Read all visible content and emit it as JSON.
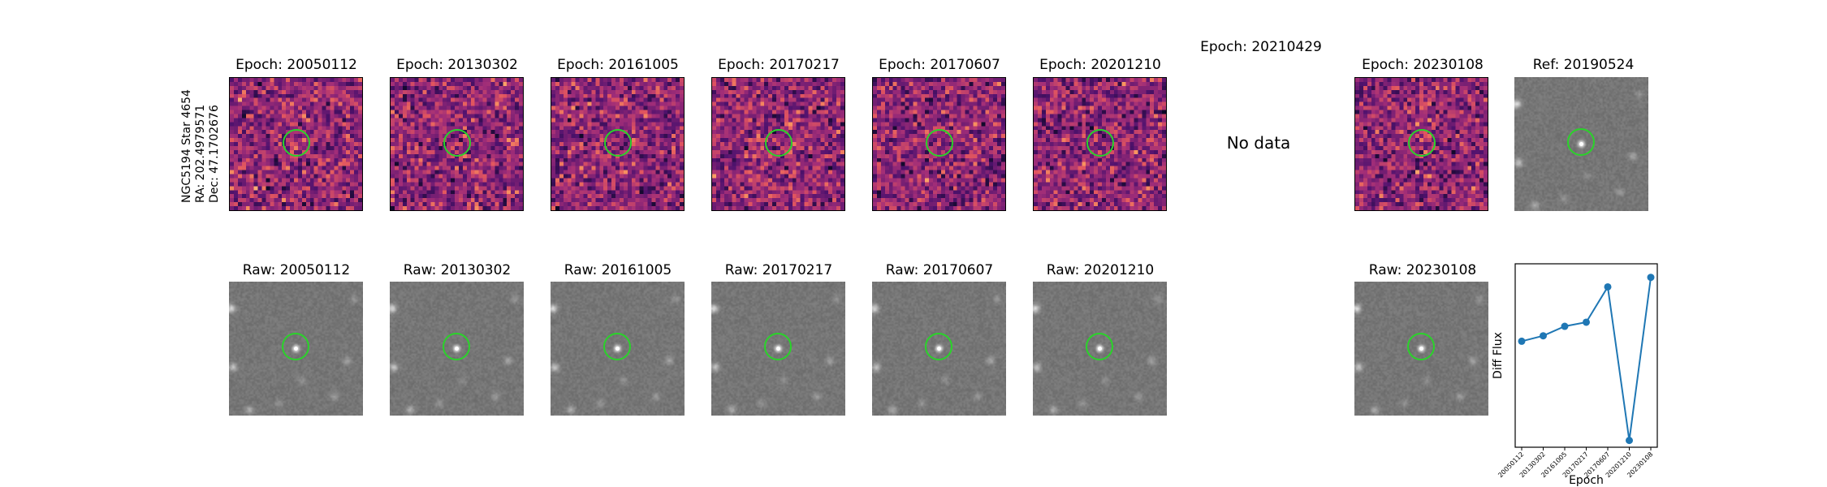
{
  "star_label": {
    "line1": "NGC5194 Star 4654",
    "line2": "RA: 202.4979571",
    "line3": "Dec: 47.1702676"
  },
  "top_row": [
    {
      "title": "Epoch: 20050112",
      "has_data": true
    },
    {
      "title": "Epoch: 20130302",
      "has_data": true
    },
    {
      "title": "Epoch: 20161005",
      "has_data": true
    },
    {
      "title": "Epoch: 20170217",
      "has_data": true
    },
    {
      "title": "Epoch: 20170607",
      "has_data": true
    },
    {
      "title": "Epoch: 20201210",
      "has_data": true
    },
    {
      "title": "Epoch: 20210429",
      "has_data": false,
      "no_data_text": "No data"
    },
    {
      "title": "Epoch: 20230108",
      "has_data": true
    },
    {
      "title": "Ref: 20190524",
      "has_data": true
    }
  ],
  "bottom_row": [
    {
      "title": "Raw: 20050112"
    },
    {
      "title": "Raw: 20130302"
    },
    {
      "title": "Raw: 20161005"
    },
    {
      "title": "Raw: 20170217"
    },
    {
      "title": "Raw: 20170607"
    },
    {
      "title": "Raw: 20201210"
    },
    {
      "title": "Raw: 20230108"
    }
  ],
  "colors": {
    "circle": "#2ad32a",
    "series": "#1f77b4"
  },
  "chart_data": {
    "type": "line",
    "title": "",
    "xlabel": "Epoch",
    "ylabel": "Diff Flux",
    "x": [
      "20050112",
      "20130302",
      "20161005",
      "20170217",
      "20170607",
      "20201210",
      "20230108"
    ],
    "series": [
      {
        "values": [
          0.53,
          0.57,
          0.64,
          0.67,
          0.93,
          -0.2,
          1.0
        ]
      }
    ],
    "ylim": [
      -0.25,
      1.1
    ],
    "yticks_visible": false,
    "grid": false,
    "marker": "circle"
  }
}
